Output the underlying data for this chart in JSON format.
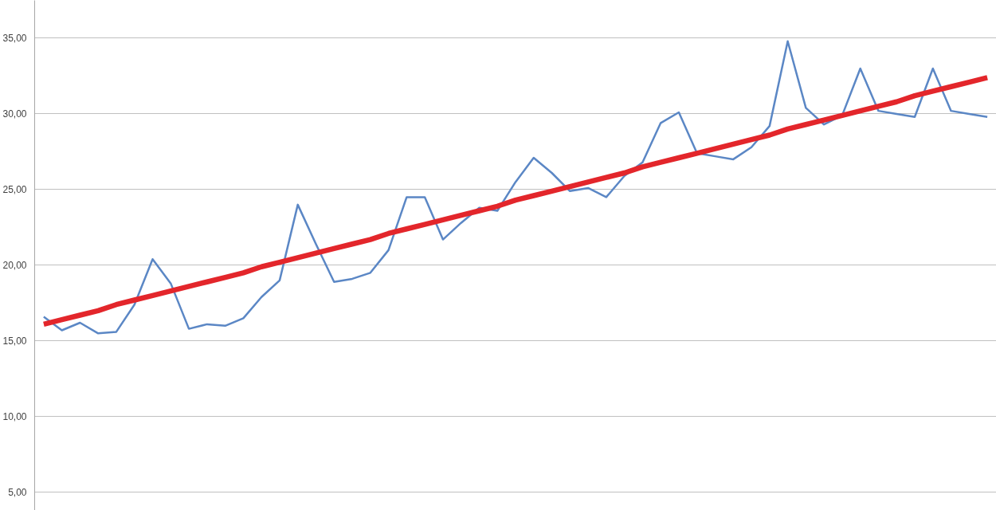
{
  "chart_data": {
    "type": "line",
    "categories": [
      null,
      null,
      null,
      null,
      null,
      null,
      null,
      null,
      null,
      null,
      null,
      null,
      null,
      null,
      null,
      null,
      null,
      null,
      null,
      null,
      null,
      null,
      null,
      null,
      null,
      null,
      null,
      null,
      null,
      null,
      null,
      null,
      null,
      null,
      null,
      null,
      null,
      null,
      null,
      null,
      null,
      null,
      null,
      null,
      null,
      null,
      null,
      null,
      null,
      null,
      null,
      null,
      null
    ],
    "series": [
      {
        "color": "#5b87c5",
        "values": [
          16.6,
          15.7,
          16.2,
          15.5,
          15.6,
          17.4,
          20.4,
          18.8,
          15.8,
          16.1,
          16.0,
          16.5,
          17.9,
          19.0,
          24.0,
          21.4,
          18.9,
          19.1,
          19.5,
          21.0,
          24.5,
          24.5,
          21.7,
          22.8,
          23.8,
          23.6,
          25.5,
          27.1,
          26.1,
          24.9,
          25.1,
          24.5,
          25.9,
          26.8,
          29.4,
          30.1,
          27.4,
          27.2,
          27.0,
          27.8,
          29.2,
          34.8,
          30.4,
          29.3,
          29.9,
          33.0,
          30.2,
          30.0,
          29.8,
          33.0,
          30.2,
          30.0,
          29.8
        ]
      },
      {
        "type": "line",
        "color": "#e3262b",
        "values": [
          16.1,
          16.4,
          16.7,
          17.0,
          17.4,
          17.7,
          18.0,
          18.3,
          18.6,
          18.9,
          19.2,
          19.5,
          19.9,
          20.2,
          20.5,
          20.8,
          21.1,
          21.4,
          21.7,
          22.1,
          22.4,
          22.7,
          23.0,
          23.3,
          23.6,
          23.9,
          24.3,
          24.6,
          24.9,
          25.2,
          25.5,
          25.8,
          26.1,
          26.5,
          26.8,
          27.1,
          27.4,
          27.7,
          28.0,
          28.3,
          28.6,
          29.0,
          29.3,
          29.6,
          29.9,
          30.2,
          30.5,
          30.8,
          31.2,
          31.5,
          31.8,
          32.1,
          32.4
        ]
      }
    ],
    "ylim": [
      3.8,
      37.5
    ],
    "yticks": [
      {
        "value": 5,
        "label": "5,00"
      },
      {
        "value": 10,
        "label": "10,00"
      },
      {
        "value": 15,
        "label": "15,00"
      },
      {
        "value": 20,
        "label": "20,00"
      },
      {
        "value": 25,
        "label": "25,00"
      },
      {
        "value": 30,
        "label": "30,00"
      },
      {
        "value": 35,
        "label": "35,00"
      }
    ],
    "grid": "y",
    "tick_labels": "y",
    "line_style": "solid"
  }
}
